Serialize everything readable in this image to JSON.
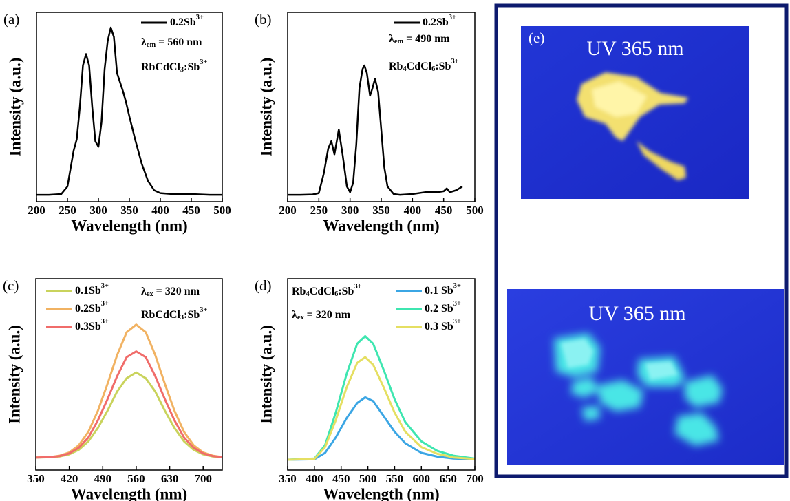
{
  "chart_data": [
    {
      "type": "line",
      "label": "(a)",
      "xlabel": "Wavelength (nm)",
      "ylabel": "Intensity (a.u.)",
      "annotations": [
        "λem = 560 nm",
        "RbCdCl3:Sb3+"
      ],
      "xlim": [
        200,
        500
      ],
      "xticks": [
        200,
        250,
        300,
        350,
        400,
        450,
        500
      ],
      "ylim": [
        0,
        1
      ],
      "legend": "upper right",
      "x": [
        200,
        220,
        240,
        250,
        260,
        265,
        270,
        275,
        280,
        285,
        290,
        295,
        300,
        305,
        310,
        315,
        320,
        325,
        330,
        335,
        340,
        345,
        350,
        360,
        370,
        380,
        390,
        400,
        420,
        450,
        480,
        500
      ],
      "series": [
        {
          "name": "0.2Sb3+",
          "color": "#000000",
          "values": [
            0.036,
            0.036,
            0.04,
            0.08,
            0.27,
            0.33,
            0.5,
            0.72,
            0.78,
            0.72,
            0.5,
            0.32,
            0.29,
            0.42,
            0.7,
            0.85,
            0.92,
            0.87,
            0.68,
            0.63,
            0.58,
            0.52,
            0.45,
            0.32,
            0.2,
            0.11,
            0.06,
            0.045,
            0.04,
            0.04,
            0.036,
            0.036
          ]
        }
      ]
    },
    {
      "type": "line",
      "label": "(b)",
      "xlabel": "Wavelength (nm)",
      "ylabel": "Intensity (a.u.)",
      "annotations": [
        "λem = 490 nm",
        "Rb4CdCl6:Sb3+"
      ],
      "xlim": [
        200,
        500
      ],
      "xticks": [
        200,
        250,
        300,
        350,
        400,
        450,
        500
      ],
      "ylim": [
        0,
        1
      ],
      "legend": "upper right",
      "x": [
        200,
        220,
        240,
        250,
        258,
        265,
        270,
        275,
        282,
        288,
        295,
        300,
        305,
        310,
        315,
        320,
        323,
        327,
        332,
        336,
        340,
        345,
        350,
        355,
        360,
        370,
        380,
        400,
        420,
        440,
        450,
        455,
        460,
        470,
        475,
        480
      ],
      "series": [
        {
          "name": "0.2Sb3+",
          "color": "#000000",
          "values": [
            0.036,
            0.036,
            0.038,
            0.045,
            0.15,
            0.28,
            0.32,
            0.25,
            0.38,
            0.25,
            0.08,
            0.05,
            0.1,
            0.3,
            0.6,
            0.7,
            0.72,
            0.68,
            0.56,
            0.6,
            0.65,
            0.58,
            0.38,
            0.18,
            0.08,
            0.04,
            0.036,
            0.04,
            0.05,
            0.05,
            0.055,
            0.07,
            0.05,
            0.06,
            0.07,
            0.08
          ]
        }
      ]
    },
    {
      "type": "line",
      "label": "(c)",
      "xlabel": "Wavelength (nm)",
      "ylabel": "Intensity (a.u.)",
      "annotations": [
        "λex = 320 nm",
        "RbCdCl3:Sb3+"
      ],
      "xlim": [
        350,
        740
      ],
      "xticks": [
        350,
        420,
        490,
        560,
        630,
        700
      ],
      "ylim": [
        0,
        1
      ],
      "legend": "upper left",
      "x": [
        350,
        380,
        400,
        420,
        440,
        460,
        480,
        500,
        520,
        540,
        560,
        580,
        600,
        620,
        640,
        660,
        680,
        700,
        720,
        740
      ],
      "series": [
        {
          "name": "0.1Sb3+",
          "color": "#c9d35c",
          "values": [
            0.065,
            0.067,
            0.071,
            0.082,
            0.106,
            0.15,
            0.22,
            0.31,
            0.41,
            0.48,
            0.51,
            0.48,
            0.41,
            0.31,
            0.22,
            0.15,
            0.106,
            0.082,
            0.071,
            0.067
          ]
        },
        {
          "name": "0.2Sb3+",
          "color": "#f1b262",
          "values": [
            0.066,
            0.068,
            0.075,
            0.092,
            0.13,
            0.2,
            0.31,
            0.45,
            0.6,
            0.72,
            0.76,
            0.72,
            0.6,
            0.45,
            0.31,
            0.2,
            0.13,
            0.092,
            0.075,
            0.068
          ]
        },
        {
          "name": "0.3Sb3+",
          "color": "#f06c6a",
          "values": [
            0.065,
            0.068,
            0.073,
            0.087,
            0.117,
            0.17,
            0.26,
            0.37,
            0.49,
            0.59,
            0.62,
            0.59,
            0.49,
            0.37,
            0.26,
            0.17,
            0.117,
            0.087,
            0.073,
            0.068
          ]
        }
      ]
    },
    {
      "type": "line",
      "label": "(d)",
      "xlabel": "Wavelength (nm)",
      "ylabel": "Intensity (a.u.)",
      "annotations": [
        "Rb4CdCl6:Sb3+",
        "λex = 320 nm"
      ],
      "xlim": [
        350,
        700
      ],
      "xticks": [
        350,
        400,
        450,
        500,
        550,
        600,
        650,
        700
      ],
      "ylim": [
        0,
        1
      ],
      "legend": "upper right",
      "x": [
        350,
        400,
        420,
        440,
        460,
        480,
        495,
        510,
        530,
        550,
        570,
        600,
        630,
        660,
        700
      ],
      "series": [
        {
          "name": "0.1 Sb3+",
          "color": "#3ba6e4",
          "values": [
            0.054,
            0.056,
            0.09,
            0.17,
            0.27,
            0.35,
            0.38,
            0.36,
            0.28,
            0.2,
            0.14,
            0.09,
            0.07,
            0.06,
            0.056
          ]
        },
        {
          "name": "0.2 Sb3+",
          "color": "#3ee6b0",
          "values": [
            0.054,
            0.06,
            0.13,
            0.3,
            0.5,
            0.66,
            0.7,
            0.66,
            0.52,
            0.37,
            0.25,
            0.15,
            0.1,
            0.075,
            0.06
          ]
        },
        {
          "name": "0.3 Sb3+",
          "color": "#e5df62",
          "values": [
            0.054,
            0.058,
            0.12,
            0.26,
            0.43,
            0.56,
            0.59,
            0.55,
            0.43,
            0.3,
            0.2,
            0.12,
            0.085,
            0.066,
            0.058
          ]
        }
      ]
    }
  ],
  "photo_panel": {
    "label": "(e)",
    "captions": [
      "UV 365 nm",
      "UV 365 nm"
    ]
  }
}
